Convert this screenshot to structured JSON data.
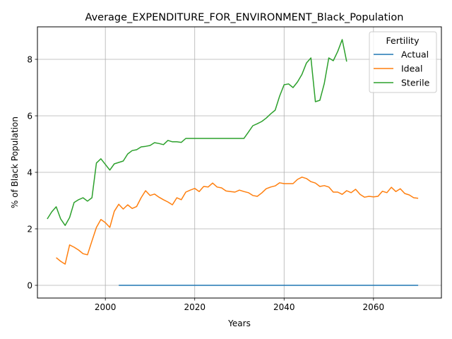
{
  "chart_data": {
    "type": "line",
    "title": "Average_EXPENDITURE_FOR_ENVIRONMENT_Black_Population",
    "xlabel": "Years",
    "ylabel": "% of Black Population",
    "xlim": [
      1984.8,
      2075.2
    ],
    "ylim": [
      -0.45,
      9.15
    ],
    "xticks": [
      2000,
      2020,
      2040,
      2060
    ],
    "yticks": [
      0,
      2,
      4,
      6,
      8
    ],
    "grid": true,
    "legend": {
      "title": "Fertility",
      "placement": "top-right"
    },
    "series": [
      {
        "name": "Actual",
        "color": "#1f77b4",
        "x": [
          2003,
          2070
        ],
        "y": [
          0,
          0
        ]
      },
      {
        "name": "Ideal",
        "color": "#ff7f0e",
        "x": [
          1989,
          1990,
          1991,
          1992,
          1993,
          1994,
          1995,
          1996,
          1997,
          1998,
          1999,
          2000,
          2001,
          2002,
          2003,
          2004,
          2005,
          2006,
          2007,
          2008,
          2009,
          2010,
          2011,
          2012,
          2013,
          2014,
          2015,
          2016,
          2017,
          2018,
          2019,
          2020,
          2021,
          2022,
          2023,
          2024,
          2025,
          2026,
          2027,
          2028,
          2029,
          2030,
          2031,
          2032,
          2033,
          2034,
          2035,
          2036,
          2037,
          2038,
          2039,
          2040,
          2041,
          2042,
          2043,
          2044,
          2045,
          2046,
          2047,
          2048,
          2049,
          2050,
          2051,
          2052,
          2053,
          2054,
          2055,
          2056,
          2057,
          2058,
          2059,
          2060,
          2061,
          2062,
          2063,
          2064,
          2065,
          2066,
          2067,
          2068,
          2069,
          2070
        ],
        "y": [
          0.98,
          0.85,
          0.75,
          1.43,
          1.35,
          1.25,
          1.12,
          1.08,
          1.57,
          2.05,
          2.33,
          2.22,
          2.05,
          2.62,
          2.87,
          2.7,
          2.85,
          2.72,
          2.79,
          3.1,
          3.35,
          3.18,
          3.23,
          3.12,
          3.03,
          2.95,
          2.85,
          3.1,
          3.03,
          3.3,
          3.37,
          3.43,
          3.32,
          3.5,
          3.48,
          3.62,
          3.48,
          3.45,
          3.34,
          3.32,
          3.3,
          3.37,
          3.32,
          3.28,
          3.18,
          3.15,
          3.27,
          3.42,
          3.48,
          3.52,
          3.63,
          3.6,
          3.6,
          3.6,
          3.75,
          3.83,
          3.78,
          3.67,
          3.62,
          3.5,
          3.53,
          3.48,
          3.3,
          3.3,
          3.22,
          3.35,
          3.28,
          3.4,
          3.22,
          3.12,
          3.15,
          3.13,
          3.15,
          3.33,
          3.28,
          3.47,
          3.32,
          3.42,
          3.25,
          3.2,
          3.1,
          3.08
        ]
      },
      {
        "name": "Sterile",
        "color": "#2ca02c",
        "x": [
          1987,
          1988,
          1989,
          1990,
          1991,
          1992,
          1993,
          1994,
          1995,
          1996,
          1997,
          1998,
          1999,
          2000,
          2001,
          2002,
          2003,
          2004,
          2005,
          2006,
          2007,
          2008,
          2009,
          2010,
          2011,
          2012,
          2013,
          2014,
          2015,
          2016,
          2017,
          2018,
          2019,
          2020,
          2021,
          2022,
          2023,
          2024,
          2025,
          2026,
          2027,
          2028,
          2029,
          2030,
          2031,
          2032,
          2033,
          2034,
          2035,
          2036,
          2037,
          2038,
          2039,
          2040,
          2041,
          2042,
          2043,
          2044,
          2045,
          2046,
          2047,
          2048,
          2049,
          2050,
          2051,
          2052,
          2053,
          2054
        ],
        "y": [
          2.35,
          2.6,
          2.78,
          2.35,
          2.12,
          2.4,
          2.93,
          3.03,
          3.1,
          2.98,
          3.1,
          4.33,
          4.48,
          4.28,
          4.08,
          4.3,
          4.35,
          4.4,
          4.65,
          4.77,
          4.8,
          4.9,
          4.92,
          4.95,
          5.05,
          5.02,
          4.98,
          5.13,
          5.08,
          5.08,
          5.06,
          5.2,
          5.2,
          5.2,
          5.2,
          5.2,
          5.2,
          5.2,
          5.2,
          5.2,
          5.2,
          5.2,
          5.2,
          5.2,
          5.2,
          5.42,
          5.65,
          5.72,
          5.8,
          5.92,
          6.07,
          6.2,
          6.7,
          7.1,
          7.13,
          7.0,
          7.2,
          7.47,
          7.87,
          8.05,
          6.5,
          6.55,
          7.15,
          8.05,
          7.95,
          8.28,
          8.7,
          7.92
        ]
      }
    ]
  }
}
